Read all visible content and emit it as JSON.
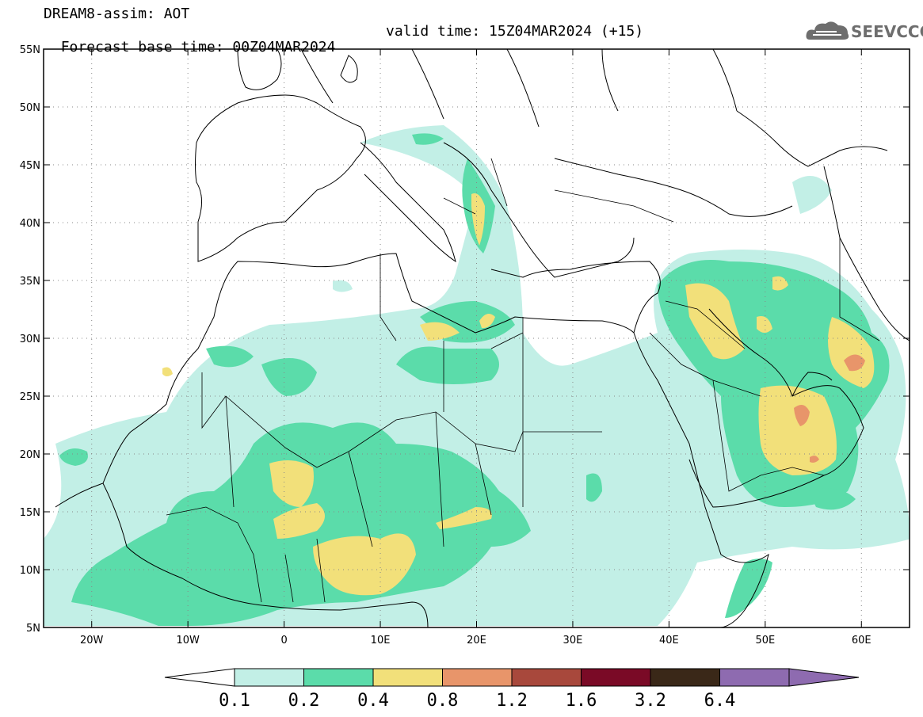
{
  "title": {
    "line1": "DREAM8-assim: AOT",
    "base_time": "Forecast base time: 00Z04MAR2024",
    "valid_time": "valid time: 15Z04MAR2024 (+15)"
  },
  "logo": {
    "text": "SEEVCCC"
  },
  "map": {
    "lon_range": [
      -25,
      65
    ],
    "lat_range": [
      5,
      55
    ],
    "lat_ticks": [
      "5N",
      "10N",
      "15N",
      "20N",
      "25N",
      "30N",
      "35N",
      "40N",
      "45N",
      "50N",
      "55N"
    ],
    "lon_ticks": [
      "20W",
      "10W",
      "0",
      "10E",
      "20E",
      "30E",
      "40E",
      "50E",
      "60E"
    ],
    "grid": "dotted"
  },
  "colorbar": {
    "labels": [
      "0.1",
      "0.2",
      "0.4",
      "0.8",
      "1.2",
      "1.6",
      "3.2",
      "6.4"
    ],
    "colors": [
      "#ffffff",
      "#c2efe6",
      "#5bdcaa",
      "#f2e07a",
      "#e8956a",
      "#a8483c",
      "#7a0a26",
      "#3a2818",
      "#8e6bb0"
    ]
  }
}
